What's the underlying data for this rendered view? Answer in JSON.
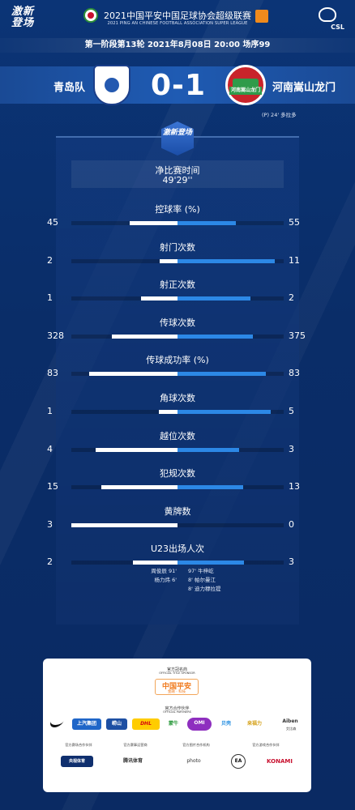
{
  "header": {
    "brand": "激新登场",
    "league_title": "2021中国平安中国足球协会超级联赛",
    "league_subtitle": "2021 PING AN CHINESE FOOTBALL ASSOCIATION SUPER LEAGUE",
    "csl_text": "CSL",
    "match_info": "第一阶段第13轮  2021年8月08日 20:00 场序99"
  },
  "match": {
    "home_team": "青岛队",
    "away_team": "河南嵩山龙门",
    "home_score": "0",
    "away_score": "1",
    "score_text": "0-1",
    "away_crest_text": "河南嵩山龙门",
    "goal_note": "(P) 24'  多拉多"
  },
  "stats_panel": {
    "badge": "激新登场",
    "net_time_label": "净比赛时间",
    "net_time_value": "49'29''",
    "colors": {
      "home_bar": "#ffffff",
      "away_bar": "#2c88e6"
    },
    "stats": [
      {
        "title": "控球率 (%)",
        "home": "45",
        "away": "55",
        "home_val": 45,
        "away_val": 55,
        "max": 100
      },
      {
        "title": "射门次数",
        "home": "2",
        "away": "11",
        "home_val": 2,
        "away_val": 11,
        "max": 12
      },
      {
        "title": "射正次数",
        "home": "1",
        "away": "2",
        "home_val": 1,
        "away_val": 2,
        "max": 2.9
      },
      {
        "title": "传球次数",
        "home": "328",
        "away": "375",
        "home_val": 328,
        "away_val": 375,
        "max": 530
      },
      {
        "title": "传球成功率 (%)",
        "home": "83",
        "away": "83",
        "home_val": 83,
        "away_val": 83,
        "max": 100
      },
      {
        "title": "角球次数",
        "home": "1",
        "away": "5",
        "home_val": 1,
        "away_val": 5,
        "max": 5.7
      },
      {
        "title": "越位次数",
        "home": "4",
        "away": "3",
        "home_val": 4,
        "away_val": 3,
        "max": 5.2
      },
      {
        "title": "犯规次数",
        "home": "15",
        "away": "13",
        "home_val": 15,
        "away_val": 13,
        "max": 21
      },
      {
        "title": "黄牌数",
        "home": "3",
        "away": "0",
        "home_val": 3,
        "away_val": 0,
        "max": 3
      },
      {
        "title": "U23出场人次",
        "home": "2",
        "away": "3",
        "home_val": 2,
        "away_val": 3,
        "max": 4.8
      }
    ],
    "u23_home": [
      "周俊辰  91'",
      "杨力炜  6'"
    ],
    "u23_away": [
      "97'  牛梓屹",
      "8'  帕尔曼江",
      "8'  迪力穆拉提"
    ]
  },
  "sponsors": {
    "title_sponsor_caption": "官方冠名商",
    "title_sponsor_caption_en": "OFFICIAL TITLE SPONSOR",
    "title_sponsor_name": "中国平安",
    "title_sponsor_tagline": "金融 · 科技",
    "partners_caption": "官方合作伙伴",
    "partners_caption_en": "OFFICIAL PARTNERS",
    "partners": [
      "上汽集团",
      "崂山",
      "DHL",
      "蒙牛",
      "OMI",
      "贝壳",
      "来福力",
      "Aiben"
    ],
    "partner_extra": "艾比森",
    "tier3": [
      {
        "caption": "官方赛场合作伙伴",
        "name": "央视体育"
      },
      {
        "caption": "官方赛事运营商",
        "name": "腾讯体育"
      },
      {
        "caption": "官方图片合作机构",
        "name": "photo"
      },
      {
        "caption": "官方游戏合作伙伴",
        "name": "KONAMI"
      }
    ],
    "ea_text": "EA"
  }
}
